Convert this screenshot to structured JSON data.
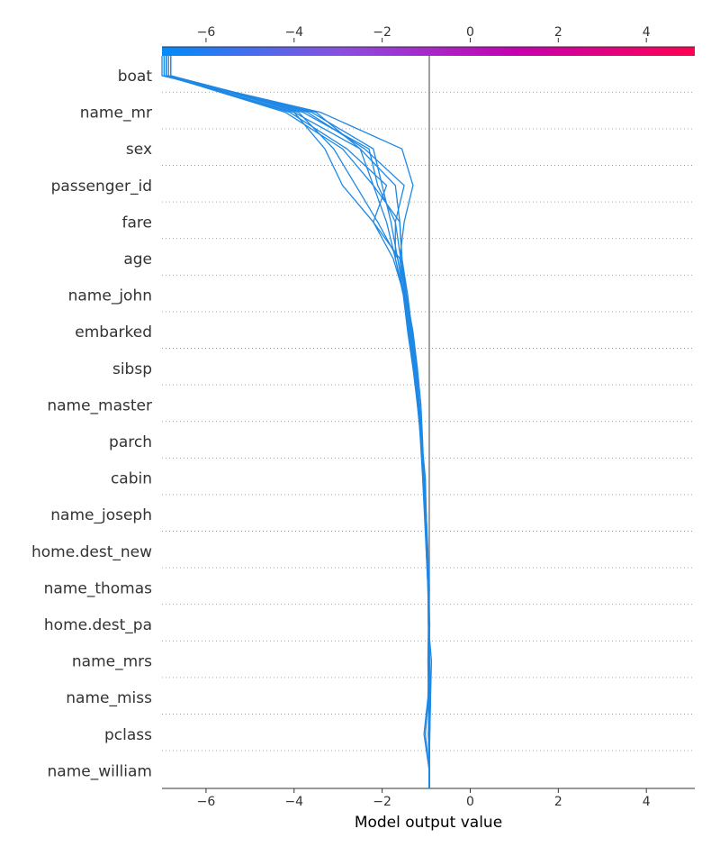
{
  "chart_data": {
    "type": "line",
    "xlabel": "Model output value",
    "xlim": [
      -7,
      5.1
    ],
    "xticks": [
      {
        "value": -6,
        "label": "−6"
      },
      {
        "value": -4,
        "label": "−4"
      },
      {
        "value": -2,
        "label": "−2"
      },
      {
        "value": 0,
        "label": "0"
      },
      {
        "value": 2,
        "label": "2"
      },
      {
        "value": 4,
        "label": "4"
      }
    ],
    "base_value": -0.93,
    "features": [
      "boat",
      "name_mr",
      "sex",
      "passenger_id",
      "fare",
      "age",
      "name_john",
      "embarked",
      "sibsp",
      "name_master",
      "parch",
      "cabin",
      "name_joseph",
      "home.dest_new",
      "name_thomas",
      "home.dest_pa",
      "name_mrs",
      "name_miss",
      "pclass",
      "name_william"
    ],
    "colorbar": {
      "colors": [
        "#008bfb",
        "#8a4fe0",
        "#c600b0",
        "#ff0052"
      ]
    },
    "line_color": "#1e88e5",
    "grid": "dotted-horizontal",
    "series": [
      {
        "values": [
          -0.93,
          -0.92,
          -0.9,
          -0.88,
          -0.95,
          -0.96,
          -1.0,
          -1.02,
          -1.05,
          -1.1,
          -1.15,
          -1.25,
          -1.35,
          -1.45,
          -1.55,
          -1.6,
          -1.7,
          -2.5,
          -4.0,
          -6.9
        ]
      },
      {
        "values": [
          -0.93,
          -0.95,
          -0.92,
          -0.94,
          -0.93,
          -0.95,
          -0.98,
          -1.0,
          -1.02,
          -1.1,
          -1.2,
          -1.28,
          -1.4,
          -1.5,
          -1.65,
          -1.8,
          -2.0,
          -2.2,
          -3.6,
          -6.8
        ]
      },
      {
        "values": [
          -0.93,
          -0.93,
          -0.94,
          -0.92,
          -0.94,
          -0.93,
          -0.96,
          -1.0,
          -1.05,
          -1.08,
          -1.12,
          -1.2,
          -1.3,
          -1.45,
          -1.6,
          -1.5,
          -1.3,
          -1.55,
          -3.4,
          -6.95
        ]
      },
      {
        "values": [
          -0.93,
          -1.05,
          -0.96,
          -0.94,
          -0.92,
          -0.95,
          -0.97,
          -1.0,
          -1.06,
          -1.12,
          -1.18,
          -1.22,
          -1.32,
          -1.42,
          -1.55,
          -1.6,
          -2.2,
          -2.9,
          -4.2,
          -6.9
        ]
      },
      {
        "values": [
          -0.93,
          -0.92,
          -0.9,
          -0.92,
          -0.93,
          -0.95,
          -0.98,
          -1.02,
          -1.05,
          -1.1,
          -1.15,
          -1.25,
          -1.35,
          -1.45,
          -1.58,
          -1.7,
          -1.5,
          -2.4,
          -3.7,
          -6.85
        ]
      },
      {
        "values": [
          -0.93,
          -1.02,
          -0.95,
          -0.93,
          -0.94,
          -0.96,
          -0.99,
          -1.03,
          -1.07,
          -1.12,
          -1.2,
          -1.3,
          -1.42,
          -1.52,
          -1.7,
          -1.9,
          -2.2,
          -2.5,
          -3.5,
          -7.0
        ]
      },
      {
        "values": [
          -0.93,
          -0.94,
          -0.95,
          -0.96,
          -0.95,
          -0.96,
          -1.0,
          -1.04,
          -1.08,
          -1.13,
          -1.18,
          -1.25,
          -1.32,
          -1.45,
          -1.65,
          -2.1,
          -2.6,
          -3.1,
          -3.9,
          -6.8
        ]
      },
      {
        "values": [
          -0.93,
          -0.93,
          -0.92,
          -0.94,
          -0.93,
          -0.95,
          -0.97,
          -1.01,
          -1.05,
          -1.1,
          -1.15,
          -1.22,
          -1.33,
          -1.48,
          -1.6,
          -2.2,
          -1.9,
          -2.8,
          -4.1,
          -6.9
        ]
      },
      {
        "values": [
          -0.93,
          -0.95,
          -0.94,
          -0.93,
          -0.95,
          -0.94,
          -0.98,
          -1.02,
          -1.06,
          -1.11,
          -1.17,
          -1.24,
          -1.36,
          -1.5,
          -1.75,
          -2.2,
          -2.9,
          -3.3,
          -4.0,
          -6.95
        ]
      },
      {
        "values": [
          -0.93,
          -0.94,
          -0.93,
          -0.93,
          -0.94,
          -0.95,
          -0.98,
          -1.01,
          -1.05,
          -1.1,
          -1.16,
          -1.26,
          -1.38,
          -1.5,
          -1.7,
          -1.7,
          -2.1,
          -2.3,
          -3.8,
          -6.9
        ]
      }
    ]
  }
}
